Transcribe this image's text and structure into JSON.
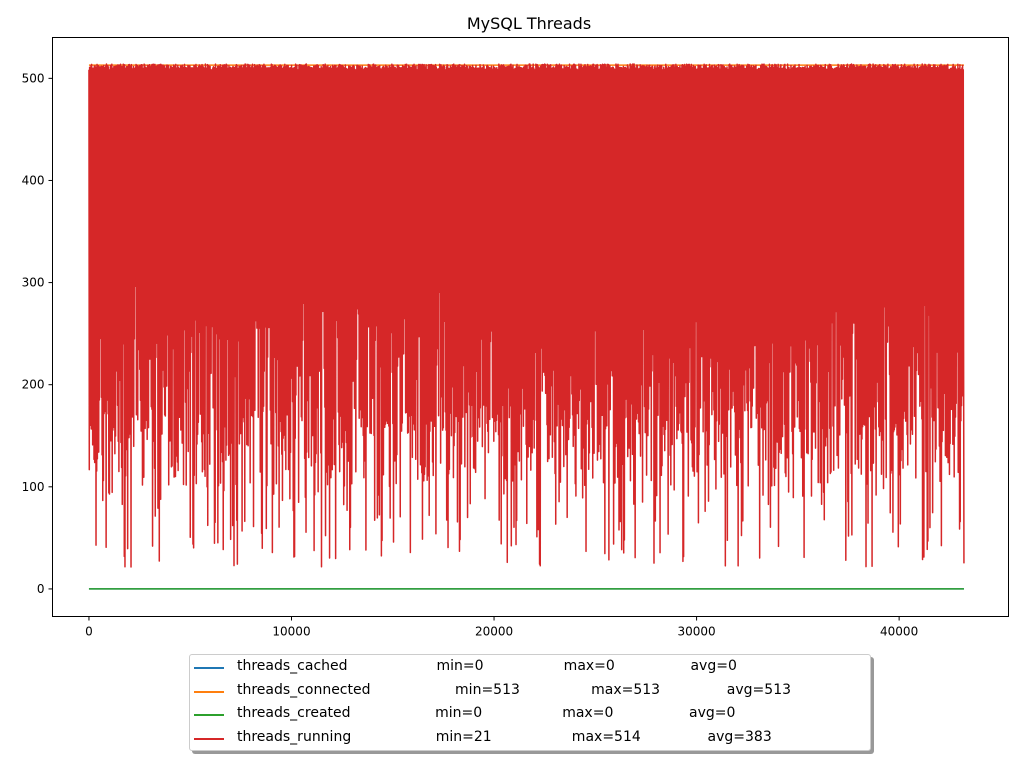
{
  "chart_data": {
    "type": "line",
    "title": "MySQL Threads",
    "xlabel": "",
    "ylabel": "",
    "xlim": [
      -1800,
      45400
    ],
    "ylim": [
      -27,
      540
    ],
    "xticks": [
      0,
      10000,
      20000,
      30000,
      40000
    ],
    "yticks": [
      0,
      100,
      200,
      300,
      400,
      500
    ],
    "grid": false,
    "legend_placement": "bottom-center",
    "x_max": 43200,
    "series": [
      {
        "name": "threads_cached",
        "color": "#1f77b4",
        "label": "threads_cached                    min=0                  max=0                 avg=0",
        "min": 0,
        "max": 0,
        "avg": 0
      },
      {
        "name": "threads_connected",
        "color": "#ff7f0e",
        "label": "threads_connected                   min=513                max=513               avg=513",
        "min": 513,
        "max": 513,
        "avg": 513
      },
      {
        "name": "threads_created",
        "color": "#2ca02c",
        "label": "threads_created                   min=0                  max=0                 avg=0",
        "min": 0,
        "max": 0,
        "avg": 0
      },
      {
        "name": "threads_running",
        "color": "#d62728",
        "label": "threads_running                   min=21                  max=514               avg=383",
        "min": 21,
        "max": 514,
        "avg": 383
      }
    ]
  }
}
